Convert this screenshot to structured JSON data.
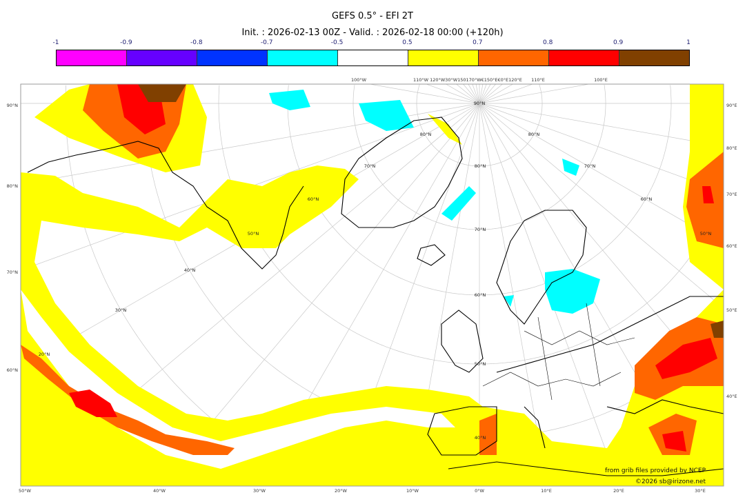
{
  "title": "GEFS 0.5° - EFI 2T",
  "subtitle": "Init. : 2026-02-13 00Z - Valid. : 2026-02-18 00:00 (+120h)",
  "colorbar": {
    "ticks": [
      "-1",
      "-0.9",
      "-0.8",
      "-0.7",
      "-0.5",
      "0.5",
      "0.7",
      "0.8",
      "0.9",
      "1"
    ],
    "colors": [
      "#ff00ff",
      "#6600ff",
      "#0033ff",
      "#00ffff",
      "#ffffff",
      "#ffff00",
      "#ff6600",
      "#ff0000",
      "#804000"
    ]
  },
  "axes": {
    "left": [
      "90°N",
      "80°N",
      "70°N",
      "60°N"
    ],
    "right": [
      "90°E",
      "80°E",
      "70°E",
      "60°E",
      "50°E",
      "40°E"
    ],
    "bottom": [
      "50°W",
      "40°W",
      "30°W",
      "20°W",
      "10°W",
      "0°W",
      "10°E",
      "20°E",
      "30°E"
    ],
    "top": [
      "100°W",
      "110°W",
      "120°W30°W150170°W€150°E€0°E120°E",
      "110°E",
      "100°E"
    ]
  },
  "grid_labels": [
    "90°N",
    "80°N",
    "70°N",
    "60°N",
    "50°N",
    "40°N",
    "20°N",
    "30°N",
    "40°N",
    "50°N",
    "60°N",
    "70°N",
    "80°N",
    "80°N",
    "70°N",
    "60°N",
    "50°N"
  ],
  "credits": {
    "source": "from grib files provided by NCEP",
    "copyright": "©2026 sb@irizone.net"
  }
}
